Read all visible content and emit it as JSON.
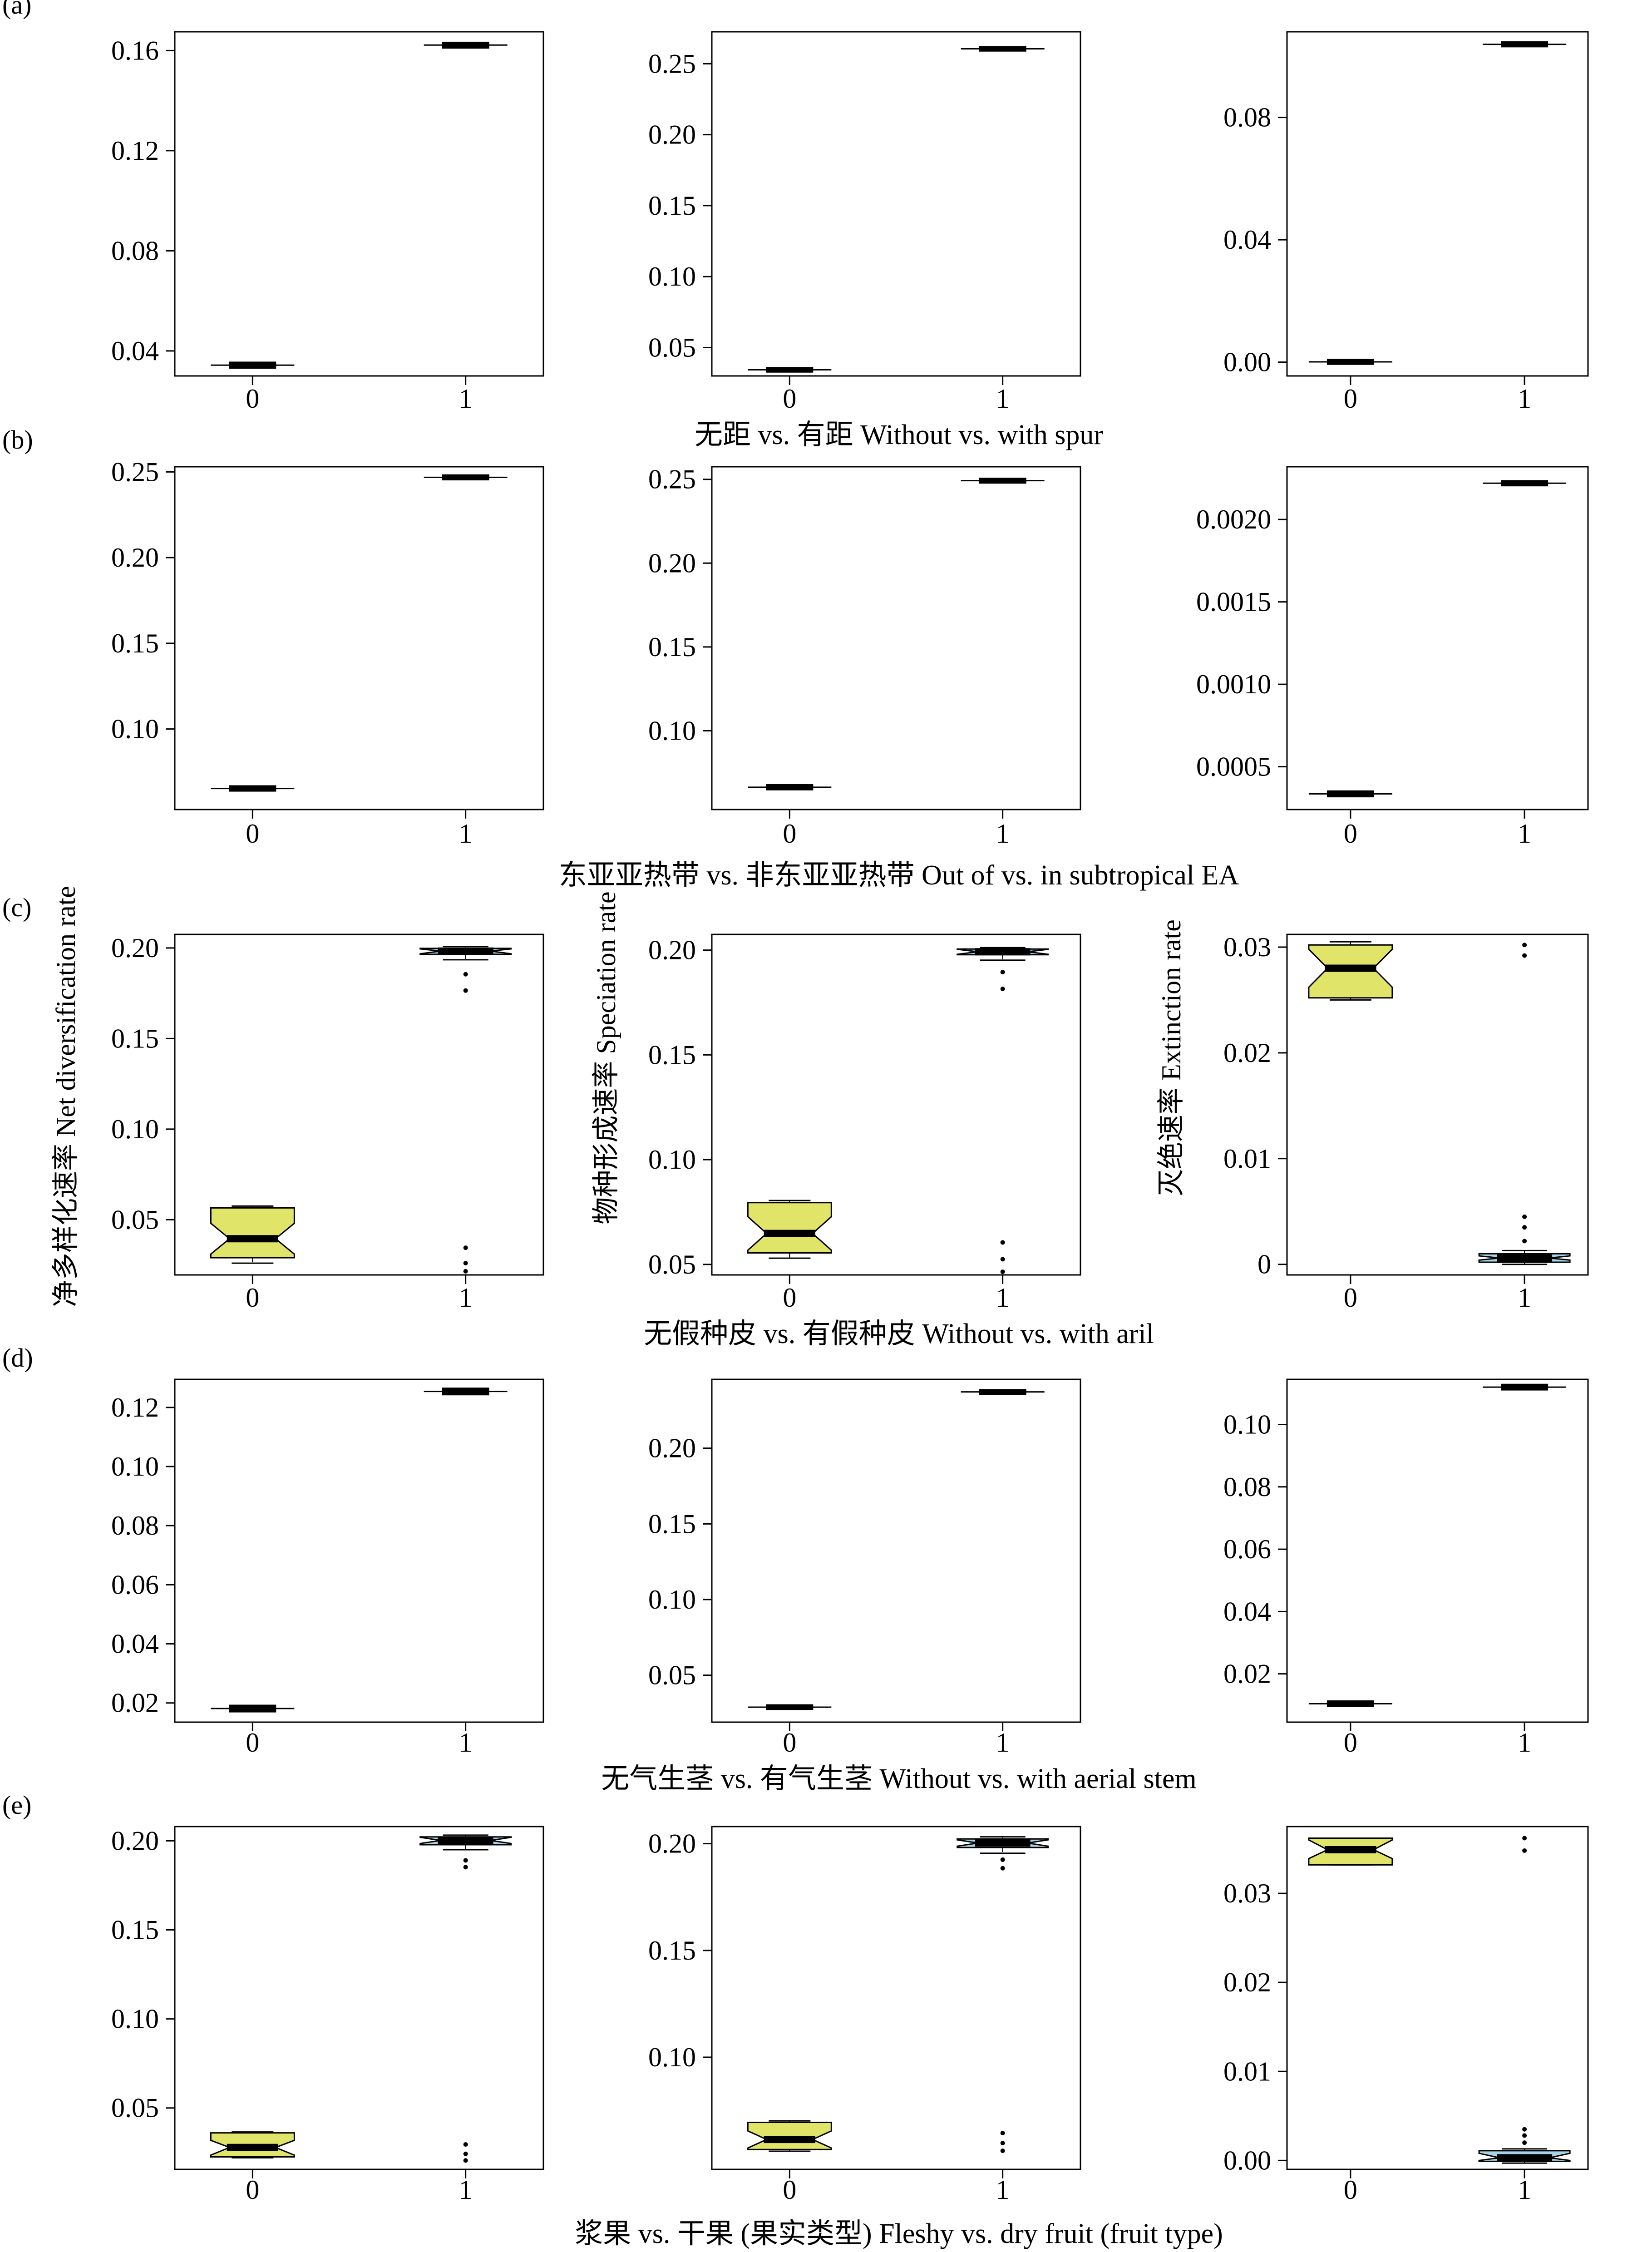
{
  "figure": {
    "ylabels": {
      "net": "净多样化速率 Net diversification rate",
      "speciation": "物种形成速率 Speciation rate",
      "extinction": "灭绝速率 Extinction rate"
    },
    "colors": {
      "state0": "#e0e468",
      "state1": "#a5d4e9",
      "line": "#000000"
    }
  },
  "chart_data": [
    {
      "row_label": "(a)",
      "caption": "无距 vs. 有距 Without vs. with spur",
      "panels": [
        {
          "type": "box",
          "ylim": [
            0.03,
            0.1675
          ],
          "ticks": [
            "0.04",
            "0.08",
            "0.12",
            "0.16"
          ],
          "categories": [
            "0",
            "1"
          ],
          "boxes": [
            {
              "q1": 0.0336,
              "median": 0.0343,
              "q3": 0.035,
              "wlo": 0.033,
              "whi": 0.0355,
              "outliers": [],
              "style": "plain"
            },
            {
              "q1": 0.1615,
              "median": 0.1622,
              "q3": 0.1628,
              "wlo": 0.161,
              "whi": 0.1632,
              "outliers": [],
              "style": "plain"
            }
          ]
        },
        {
          "type": "box",
          "ylim": [
            0.03,
            0.2725
          ],
          "ticks": [
            "0.05",
            "0.10",
            "0.15",
            "0.20",
            "0.25"
          ],
          "categories": [
            "0",
            "1"
          ],
          "boxes": [
            {
              "q1": 0.0336,
              "median": 0.0343,
              "q3": 0.035,
              "wlo": 0.033,
              "whi": 0.0355,
              "outliers": [],
              "style": "plain"
            },
            {
              "q1": 0.2598,
              "median": 0.2605,
              "q3": 0.2612,
              "wlo": 0.259,
              "whi": 0.2617,
              "outliers": [],
              "style": "plain"
            }
          ]
        },
        {
          "type": "box",
          "ylim": [
            -0.0045,
            0.108
          ],
          "ticks": [
            "0.00",
            "0.04",
            "0.08"
          ],
          "categories": [
            "0",
            "1"
          ],
          "boxes": [
            {
              "q1": -0.0003,
              "median": 0.0001,
              "q3": 0.0005,
              "wlo": -0.0006,
              "whi": 0.0008,
              "outliers": [],
              "style": "plain"
            },
            {
              "q1": 0.1035,
              "median": 0.1039,
              "q3": 0.1043,
              "wlo": 0.1031,
              "whi": 0.1046,
              "outliers": [],
              "style": "plain"
            }
          ]
        }
      ]
    },
    {
      "row_label": "(b)",
      "caption": "东亚亚热带 vs. 非东亚亚热带 Out of vs. in subtropical EA",
      "panels": [
        {
          "type": "box",
          "ylim": [
            0.053,
            0.253
          ],
          "ticks": [
            "0.10",
            "0.15",
            "0.20",
            "0.25"
          ],
          "categories": [
            "0",
            "1"
          ],
          "boxes": [
            {
              "q1": 0.0645,
              "median": 0.0653,
              "q3": 0.0661,
              "wlo": 0.0638,
              "whi": 0.0667,
              "outliers": [],
              "style": "plain"
            },
            {
              "q1": 0.2461,
              "median": 0.2468,
              "q3": 0.2475,
              "wlo": 0.2455,
              "whi": 0.248,
              "outliers": [],
              "style": "plain"
            }
          ]
        },
        {
          "type": "box",
          "ylim": [
            0.053,
            0.2575
          ],
          "ticks": [
            "0.10",
            "0.15",
            "0.20",
            "0.25"
          ],
          "categories": [
            "0",
            "1"
          ],
          "boxes": [
            {
              "q1": 0.0655,
              "median": 0.0663,
              "q3": 0.0671,
              "wlo": 0.0648,
              "whi": 0.0677,
              "outliers": [],
              "style": "plain"
            },
            {
              "q1": 0.2485,
              "median": 0.2492,
              "q3": 0.2499,
              "wlo": 0.2479,
              "whi": 0.2504,
              "outliers": [],
              "style": "plain"
            }
          ]
        },
        {
          "type": "box",
          "ylim": [
            0.00024,
            0.00232
          ],
          "ticks": [
            "0.0005",
            "0.0010",
            "0.0015",
            "0.0020"
          ],
          "categories": [
            "0",
            "1"
          ],
          "boxes": [
            {
              "q1": 0.000325,
              "median": 0.000335,
              "q3": 0.000345,
              "wlo": 0.000318,
              "whi": 0.000352,
              "outliers": [],
              "style": "plain"
            },
            {
              "q1": 0.002212,
              "median": 0.00222,
              "q3": 0.002228,
              "wlo": 0.002205,
              "whi": 0.002235,
              "outliers": [],
              "style": "plain"
            }
          ]
        }
      ]
    },
    {
      "row_label": "(c)",
      "caption": "无假种皮 vs. 有假种皮 Without vs. with aril",
      "panels": [
        {
          "type": "box",
          "ylim": [
            0.0195,
            0.2075
          ],
          "ticks": [
            "0.05",
            "0.10",
            "0.15",
            "0.20"
          ],
          "categories": [
            "0",
            "1"
          ],
          "boxes": [
            {
              "q1": 0.029,
              "median": 0.0395,
              "q3": 0.0565,
              "wlo": 0.026,
              "whi": 0.0575,
              "outliers": [],
              "notch": [
                0.031,
                0.048
              ],
              "style": "state0"
            },
            {
              "q1": 0.1965,
              "median": 0.1983,
              "q3": 0.1998,
              "wlo": 0.1935,
              "whi": 0.2008,
              "outliers": [
                0.1855,
                0.1765,
                0.0345,
                0.026,
                0.0215
              ],
              "notch": [
                0.1968,
                0.1995
              ],
              "style": "state1"
            }
          ]
        },
        {
          "type": "box",
          "ylim": [
            0.045,
            0.2075
          ],
          "ticks": [
            "0.05",
            "0.10",
            "0.15",
            "0.20"
          ],
          "categories": [
            "0",
            "1"
          ],
          "boxes": [
            {
              "q1": 0.0555,
              "median": 0.0648,
              "q3": 0.0795,
              "wlo": 0.053,
              "whi": 0.0805,
              "outliers": [],
              "notch": [
                0.0568,
                0.0728
              ],
              "style": "state0"
            },
            {
              "q1": 0.1978,
              "median": 0.1992,
              "q3": 0.2005,
              "wlo": 0.1952,
              "whi": 0.2012,
              "outliers": [
                0.1895,
                0.1815,
                0.0605,
                0.0525,
                0.0465
              ],
              "notch": [
                0.198,
                0.2004
              ],
              "style": "state1"
            }
          ]
        },
        {
          "type": "box",
          "ylim": [
            -0.001,
            0.0312
          ],
          "ticks": [
            "0",
            "0.01",
            "0.02",
            "0.03"
          ],
          "categories": [
            "0",
            "1"
          ],
          "boxes": [
            {
              "q1": 0.0252,
              "median": 0.028,
              "q3": 0.0302,
              "wlo": 0.025,
              "whi": 0.0305,
              "outliers": [],
              "notch": [
                0.0262,
                0.0298
              ],
              "style": "state0"
            },
            {
              "q1": 0.0002,
              "median": 0.0006,
              "q3": 0.001,
              "wlo": 0.0,
              "whi": 0.0013,
              "outliers": [
                0.0302,
                0.0292,
                0.0045,
                0.0035,
                0.0022
              ],
              "notch": [
                0.0004,
                0.0008
              ],
              "style": "state1"
            }
          ]
        }
      ]
    },
    {
      "row_label": "(d)",
      "caption": "无气生茎 vs. 有气生茎 Without vs. with aerial stem",
      "panels": [
        {
          "type": "box",
          "ylim": [
            0.0135,
            0.1295
          ],
          "ticks": [
            "0.02",
            "0.04",
            "0.06",
            "0.08",
            "0.10",
            "0.12"
          ],
          "categories": [
            "0",
            "1"
          ],
          "boxes": [
            {
              "q1": 0.0174,
              "median": 0.0181,
              "q3": 0.0188,
              "wlo": 0.017,
              "whi": 0.0192,
              "outliers": [],
              "style": "plain"
            },
            {
              "q1": 0.1247,
              "median": 0.1254,
              "q3": 0.1261,
              "wlo": 0.1243,
              "whi": 0.1265,
              "outliers": [],
              "style": "plain"
            }
          ]
        },
        {
          "type": "box",
          "ylim": [
            0.019,
            0.2455
          ],
          "ticks": [
            "0.05",
            "0.10",
            "0.15",
            "0.20"
          ],
          "categories": [
            "0",
            "1"
          ],
          "boxes": [
            {
              "q1": 0.0282,
              "median": 0.0289,
              "q3": 0.0296,
              "wlo": 0.0278,
              "whi": 0.03,
              "outliers": [],
              "style": "plain"
            },
            {
              "q1": 0.2365,
              "median": 0.2372,
              "q3": 0.2379,
              "wlo": 0.2361,
              "whi": 0.2383,
              "outliers": [],
              "style": "plain"
            }
          ]
        },
        {
          "type": "box",
          "ylim": [
            0.0045,
            0.1145
          ],
          "ticks": [
            "0.02",
            "0.04",
            "0.06",
            "0.08",
            "0.10"
          ],
          "categories": [
            "0",
            "1"
          ],
          "boxes": [
            {
              "q1": 0.0099,
              "median": 0.0104,
              "q3": 0.0109,
              "wlo": 0.0096,
              "whi": 0.0112,
              "outliers": [],
              "style": "plain"
            },
            {
              "q1": 0.1115,
              "median": 0.112,
              "q3": 0.1125,
              "wlo": 0.1112,
              "whi": 0.1128,
              "outliers": [],
              "style": "plain"
            }
          ]
        }
      ]
    },
    {
      "row_label": "(e)",
      "caption": "浆果 vs. 干果 (果实类型) Fleshy vs. dry fruit (fruit type)",
      "panels": [
        {
          "type": "box",
          "ylim": [
            0.0155,
            0.208
          ],
          "ticks": [
            "0.05",
            "0.10",
            "0.15",
            "0.20"
          ],
          "categories": [
            "0",
            "1"
          ],
          "boxes": [
            {
              "q1": 0.0225,
              "median": 0.0278,
              "q3": 0.036,
              "wlo": 0.022,
              "whi": 0.0365,
              "outliers": [],
              "notch": [
                0.0235,
                0.0318
              ],
              "style": "state0"
            },
            {
              "q1": 0.1978,
              "median": 0.2002,
              "q3": 0.2022,
              "wlo": 0.195,
              "whi": 0.2032,
              "outliers": [
                0.189,
                0.1852,
                0.0295,
                0.0242,
                0.0205
              ],
              "notch": [
                0.1985,
                0.202
              ],
              "style": "state1"
            }
          ]
        },
        {
          "type": "box",
          "ylim": [
            0.0475,
            0.208
          ],
          "ticks": [
            "0.10",
            "0.15",
            "0.20"
          ],
          "categories": [
            "0",
            "1"
          ],
          "boxes": [
            {
              "q1": 0.0568,
              "median": 0.0615,
              "q3": 0.0695,
              "wlo": 0.056,
              "whi": 0.0702,
              "outliers": [],
              "notch": [
                0.0575,
                0.0655
              ],
              "style": "state0"
            },
            {
              "q1": 0.1982,
              "median": 0.2003,
              "q3": 0.2022,
              "wlo": 0.1955,
              "whi": 0.2032,
              "outliers": [
                0.1925,
                0.1885,
                0.0645,
                0.0598,
                0.0562
              ],
              "notch": [
                0.1988,
                0.2018
              ],
              "style": "state1"
            }
          ]
        },
        {
          "type": "box",
          "ylim": [
            -0.001,
            0.0375
          ],
          "ticks": [
            "0.00",
            "0.01",
            "0.02",
            "0.03"
          ],
          "categories": [
            "0",
            "1"
          ],
          "boxes": [
            {
              "q1": 0.0332,
              "median": 0.0349,
              "q3": 0.0362,
              "wlo": 0.0332,
              "whi": 0.0362,
              "outliers": [],
              "notch": [
                0.0339,
                0.036
              ],
              "style": "state0"
            },
            {
              "q1": -0.0001,
              "median": 0.0003,
              "q3": 0.0011,
              "wlo": -0.0003,
              "whi": 0.0013,
              "outliers": [
                0.0362,
                0.0348,
                0.0035,
                0.0028,
                0.002
              ],
              "notch": [
                0.0,
                0.0008
              ],
              "style": "state1"
            }
          ]
        }
      ]
    }
  ]
}
